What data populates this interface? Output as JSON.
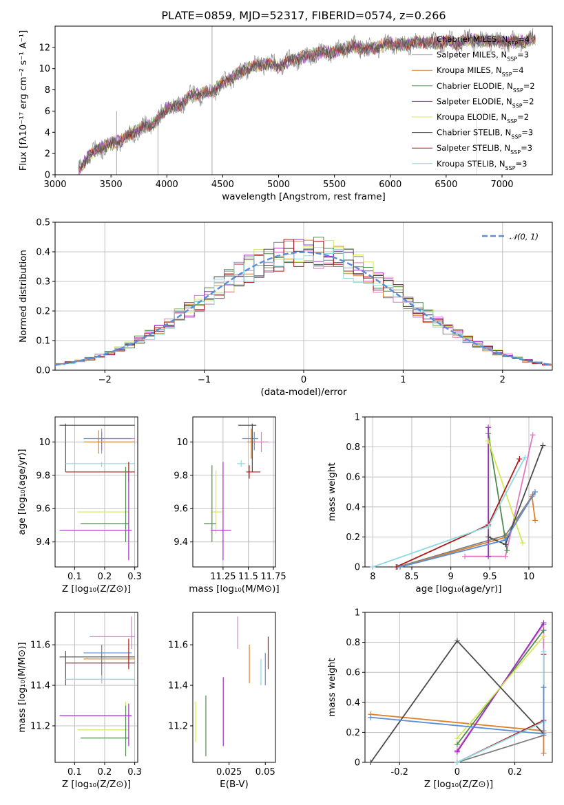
{
  "figure": {
    "title": "PLATE=0859, MJD=52317, FIBERID=0574, z=0.266"
  },
  "series_styles": [
    {
      "name": "Chabrier MILES",
      "nssp": "4",
      "color": "#808080"
    },
    {
      "name": "Salpeter MILES",
      "nssp": "3",
      "color": "#e377c2"
    },
    {
      "name": "Kroupa MILES",
      "nssp": "4",
      "color": "#d9822b"
    },
    {
      "name": "Chabrier ELODIE",
      "nssp": "2",
      "color": "#4f8a4f"
    },
    {
      "name": "Salpeter ELODIE",
      "nssp": "2",
      "color": "#9a2fbf"
    },
    {
      "name": "Kroupa ELODIE",
      "nssp": "2",
      "color": "#d4e857"
    },
    {
      "name": "Chabrier STELIB",
      "nssp": "3",
      "color": "#4a4a4a"
    },
    {
      "name": "Salpeter STELIB",
      "nssp": "3",
      "color": "#b01818"
    },
    {
      "name": "Kroupa STELIB",
      "nssp": "3",
      "color": "#8fd9e0"
    }
  ],
  "legend_extra_color": "#5b8dd9",
  "chart_data": [
    {
      "id": "spectrum",
      "type": "line",
      "xlabel": "wavelength [Angstrom, rest frame]",
      "ylabel": "Flux [fλ10⁻¹⁷ erg cm⁻² s⁻¹ A⁻¹]",
      "xlim": [
        3000,
        7450
      ],
      "ylim": [
        0,
        14
      ],
      "xticks": [
        "3000",
        "3500",
        "4000",
        "4500",
        "5000",
        "5500",
        "6000",
        "6500",
        "7000"
      ],
      "yticks": [
        "0",
        "2",
        "4",
        "6",
        "8",
        "10",
        "12"
      ],
      "grid": false,
      "legend_position": "top-right",
      "continuum": {
        "x": [
          3200,
          3300,
          3400,
          3500,
          3600,
          3700,
          3800,
          3900,
          4000,
          4100,
          4200,
          4300,
          4400,
          4500,
          4600,
          4700,
          4800,
          4900,
          5000,
          5100,
          5200,
          5300,
          5400,
          5500,
          5600,
          5700,
          5800,
          5900,
          6000,
          6100,
          6200,
          6300,
          6400,
          6500,
          6600,
          6700,
          6800,
          6900,
          7000,
          7100,
          7200,
          7300
        ],
        "y": [
          0.2,
          1.8,
          2.5,
          2.9,
          3.3,
          4.0,
          4.5,
          4.9,
          6.3,
          6.4,
          7.4,
          7.6,
          7.8,
          8.6,
          9.3,
          9.9,
          10.3,
          10.5,
          10.2,
          10.8,
          11.0,
          11.3,
          11.6,
          11.5,
          11.9,
          12.1,
          11.8,
          12.1,
          12.4,
          12.2,
          12.4,
          12.5,
          12.4,
          12.6,
          12.3,
          12.8,
          12.6,
          12.7,
          12.5,
          12.6,
          12.5,
          12.9
        ]
      }
    },
    {
      "id": "residuals",
      "type": "histogram",
      "xlabel": "(data-model)/error",
      "ylabel": "Normed distribution",
      "xlim": [
        -2.5,
        2.5
      ],
      "ylim": [
        0,
        0.5
      ],
      "xticks": [
        "−2",
        "−1",
        "0",
        "1",
        "2"
      ],
      "yticks": [
        "0.0",
        "0.1",
        "0.2",
        "0.3",
        "0.4",
        "0.5"
      ],
      "grid": true,
      "legend_position": "top-right",
      "reference_curve": {
        "label": "𝒩(0, 1)",
        "mean": 0,
        "sigma": 1
      },
      "bin_width": 0.1
    },
    {
      "id": "age_vs_Z",
      "type": "scatter",
      "xlabel": "Z [log₁₀(Z/Z⊙)]",
      "ylabel": "age  [log₁₀(age/yr)]",
      "xlim": [
        0.035,
        0.31
      ],
      "ylim": [
        9.25,
        10.15
      ],
      "xticks": [
        0.1,
        0.2,
        0.3
      ],
      "yticks": [
        9.4,
        9.6,
        9.8,
        10.0
      ],
      "grid": true,
      "points": [
        {
          "x": 0.19,
          "y": 10.02,
          "xerr": [
            0.19,
            0.3
          ],
          "yerr": [
            9.93,
            10.08
          ],
          "series": 1
        },
        {
          "x": 0.18,
          "y": 10.0,
          "xerr": [
            0.13,
            0.3
          ],
          "yerr": [
            9.93,
            10.07
          ],
          "series": 2
        },
        {
          "x": 0.19,
          "y": 10.02,
          "xerr": [
            0.13,
            0.29
          ],
          "yerr": [
            9.95,
            10.06
          ],
          "series": 9
        },
        {
          "x": 0.07,
          "y": 10.1,
          "xerr": [
            0.05,
            0.3
          ],
          "yerr": [
            9.82,
            10.11
          ],
          "series": 6
        },
        {
          "x": 0.19,
          "y": 9.87,
          "xerr": [
            0.07,
            0.3
          ],
          "yerr": [
            9.85,
            9.88
          ],
          "series": 8
        },
        {
          "x": 0.28,
          "y": 9.82,
          "xerr": [
            0.07,
            0.3
          ],
          "yerr": [
            9.76,
            9.88
          ],
          "series": 7
        },
        {
          "x": 0.27,
          "y": 9.58,
          "xerr": [
            0.11,
            0.28
          ],
          "yerr": [
            9.45,
            9.83
          ],
          "series": 5
        },
        {
          "x": 0.27,
          "y": 9.51,
          "xerr": [
            0.12,
            0.28
          ],
          "yerr": [
            9.4,
            9.85
          ],
          "series": 3
        },
        {
          "x": 0.28,
          "y": 9.47,
          "xerr": [
            0.05,
            0.29
          ],
          "yerr": [
            9.29,
            9.82
          ],
          "series": 4
        }
      ]
    },
    {
      "id": "age_vs_mass",
      "type": "scatter",
      "xlabel": "mass [log₁₀(M/M⊙)]",
      "ylabel": "",
      "xlim": [
        10.95,
        11.77
      ],
      "ylim": [
        9.25,
        10.15
      ],
      "xticks": [
        11.25,
        11.5,
        11.75
      ],
      "yticks": [
        9.4,
        9.6,
        9.8,
        10.0
      ],
      "grid": true,
      "points": [
        {
          "x": 11.63,
          "y": 10.0,
          "xerr": [
            11.55,
            11.7
          ],
          "yerr": [
            9.94,
            10.06
          ],
          "series": 1
        },
        {
          "x": 11.53,
          "y": 10.0,
          "xerr": [
            11.49,
            11.57
          ],
          "yerr": [
            9.9,
            10.08
          ],
          "series": 2
        },
        {
          "x": 11.56,
          "y": 10.02,
          "xerr": [
            11.44,
            11.6
          ],
          "yerr": [
            9.95,
            10.06
          ],
          "series": 9
        },
        {
          "x": 11.54,
          "y": 10.1,
          "xerr": [
            11.4,
            11.58
          ],
          "yerr": [
            9.82,
            10.11
          ],
          "series": 6
        },
        {
          "x": 11.43,
          "y": 9.87,
          "xerr": [
            11.39,
            11.47
          ],
          "yerr": [
            9.85,
            9.89
          ],
          "series": 8
        },
        {
          "x": 11.51,
          "y": 9.82,
          "xerr": [
            11.48,
            11.62
          ],
          "yerr": [
            9.78,
            9.86
          ],
          "series": 7
        },
        {
          "x": 11.18,
          "y": 9.58,
          "xerr": [
            11.14,
            11.24
          ],
          "yerr": [
            9.45,
            9.83
          ],
          "series": 5
        },
        {
          "x": 11.14,
          "y": 9.51,
          "xerr": [
            11.06,
            11.18
          ],
          "yerr": [
            9.4,
            9.86
          ],
          "series": 3
        },
        {
          "x": 11.25,
          "y": 9.47,
          "xerr": [
            11.13,
            11.33
          ],
          "yerr": [
            9.29,
            9.88
          ],
          "series": 4
        }
      ]
    },
    {
      "id": "weight_vs_age",
      "type": "line",
      "xlabel": "age  [log₁₀(age/yr)]",
      "ylabel": "mass weight",
      "xlim": [
        7.9,
        10.3
      ],
      "ylim": [
        0,
        1
      ],
      "xticks": [
        8.0,
        8.5,
        9.0,
        9.5,
        10.0
      ],
      "yticks": [
        0.0,
        0.2,
        0.4,
        0.6,
        0.8,
        1.0
      ],
      "grid": true,
      "series_points": [
        {
          "series": 0,
          "x": [
            8.32,
            9.7,
            10.05
          ],
          "y": [
            0.0,
            0.21,
            0.48
          ]
        },
        {
          "series": 1,
          "x": [
            9.18,
            9.7,
            10.05
          ],
          "y": [
            0.07,
            0.07,
            0.88
          ]
        },
        {
          "series": 2,
          "x": [
            8.35,
            9.72,
            10.04,
            10.08
          ],
          "y": [
            0.0,
            0.2,
            0.47,
            0.31
          ]
        },
        {
          "series": 3,
          "x": [
            9.48,
            9.72
          ],
          "y": [
            0.89,
            0.11
          ]
        },
        {
          "series": 4,
          "x": [
            9.48,
            9.48
          ],
          "y": [
            0.93,
            0.07
          ]
        },
        {
          "series": 5,
          "x": [
            9.48,
            9.92
          ],
          "y": [
            0.84,
            0.16
          ]
        },
        {
          "series": 6,
          "x": [
            9.48,
            9.7,
            10.18
          ],
          "y": [
            0.2,
            0.15,
            0.81
          ]
        },
        {
          "series": 7,
          "x": [
            8.3,
            9.48,
            9.88
          ],
          "y": [
            0.0,
            0.28,
            0.72
          ]
        },
        {
          "series": 8,
          "x": [
            8.0,
            9.48,
            9.95
          ],
          "y": [
            0.0,
            0.27,
            0.73
          ]
        },
        {
          "series": 9,
          "x": [
            8.35,
            9.7,
            10.08
          ],
          "y": [
            0.0,
            0.18,
            0.5
          ]
        }
      ]
    },
    {
      "id": "mass_vs_Z",
      "type": "scatter",
      "xlabel": "Z [log₁₀(Z/Z⊙)]",
      "ylabel": "mass [log₁₀(M/M⊙)]",
      "xlim": [
        0.035,
        0.31
      ],
      "ylim": [
        11.02,
        11.76
      ],
      "xticks": [
        0.1,
        0.2,
        0.3
      ],
      "yticks": [
        11.2,
        11.4,
        11.6
      ],
      "grid": true,
      "points": [
        {
          "x": 0.29,
          "y": 11.64,
          "xerr": [
            0.15,
            0.3
          ],
          "yerr": [
            11.58,
            11.74
          ],
          "series": 1
        },
        {
          "x": 0.19,
          "y": 11.53,
          "xerr": [
            0.13,
            0.3
          ],
          "yerr": [
            11.42,
            11.6
          ],
          "series": 2
        },
        {
          "x": 0.19,
          "y": 11.56,
          "xerr": [
            0.13,
            0.29
          ],
          "yerr": [
            11.41,
            11.6
          ],
          "series": 9
        },
        {
          "x": 0.07,
          "y": 11.54,
          "xerr": [
            0.05,
            0.3
          ],
          "yerr": [
            11.4,
            11.57
          ],
          "series": 6
        },
        {
          "x": 0.19,
          "y": 11.43,
          "xerr": [
            0.07,
            0.3
          ],
          "yerr": [
            11.41,
            11.45
          ],
          "series": 8
        },
        {
          "x": 0.28,
          "y": 11.51,
          "xerr": [
            0.07,
            0.3
          ],
          "yerr": [
            11.48,
            11.63
          ],
          "series": 7
        },
        {
          "x": 0.27,
          "y": 11.18,
          "xerr": [
            0.11,
            0.28
          ],
          "yerr": [
            11.12,
            11.32
          ],
          "series": 5
        },
        {
          "x": 0.27,
          "y": 11.14,
          "xerr": [
            0.12,
            0.28
          ],
          "yerr": [
            11.05,
            11.3
          ],
          "series": 3
        },
        {
          "x": 0.28,
          "y": 11.25,
          "xerr": [
            0.05,
            0.29
          ],
          "yerr": [
            11.1,
            11.31
          ],
          "series": 4
        }
      ]
    },
    {
      "id": "mass_vs_ebv",
      "type": "scatter",
      "xlabel": "E(B-V)",
      "ylabel": "",
      "xlim": [
        0.0,
        0.057
      ],
      "ylim": [
        11.02,
        11.76
      ],
      "xticks": [
        0.025,
        0.05
      ],
      "yticks": [
        11.2,
        11.4,
        11.6
      ],
      "grid": false,
      "points": [
        {
          "x": 0.031,
          "y": 11.64,
          "yerr": [
            11.58,
            11.74
          ],
          "series": 1
        },
        {
          "x": 0.039,
          "y": 11.53,
          "yerr": [
            11.41,
            11.6
          ],
          "series": 2
        },
        {
          "x": 0.052,
          "y": 11.56,
          "yerr": [
            11.48,
            11.64
          ],
          "series": 7
        },
        {
          "x": 0.047,
          "y": 11.43,
          "yerr": [
            11.4,
            11.53
          ],
          "series": 8
        },
        {
          "x": 0.05,
          "y": 11.48,
          "yerr": [
            11.4,
            11.56
          ],
          "series": 9
        },
        {
          "x": 0.002,
          "y": 11.22,
          "yerr": [
            11.12,
            11.32
          ],
          "series": 5
        },
        {
          "x": 0.009,
          "y": 11.2,
          "yerr": [
            11.05,
            11.35
          ],
          "series": 3
        },
        {
          "x": 0.021,
          "y": 11.27,
          "yerr": [
            11.1,
            11.44
          ],
          "series": 4
        }
      ]
    },
    {
      "id": "weight_vs_Z",
      "type": "line",
      "xlabel": "Z [log₁₀(Z/Z⊙)]",
      "ylabel": "mass weight",
      "xlim": [
        -0.32,
        0.33
      ],
      "ylim": [
        0,
        1
      ],
      "xticks": [
        -0.2,
        0.0,
        0.2
      ],
      "yticks": [
        0.0,
        0.2,
        0.4,
        0.6,
        0.8,
        1.0
      ],
      "grid": true,
      "series_points": [
        {
          "series": 0,
          "x": [
            0.0,
            0.3,
            0.3
          ],
          "y": [
            0.0,
            0.18,
            0.5
          ]
        },
        {
          "series": 1,
          "x": [
            0.0,
            0.3,
            0.3
          ],
          "y": [
            0.08,
            0.92,
            0.06
          ]
        },
        {
          "series": 2,
          "x": [
            -0.3,
            0.3,
            0.3
          ],
          "y": [
            0.32,
            0.21,
            0.06
          ]
        },
        {
          "series": 3,
          "x": [
            0.0,
            0.3
          ],
          "y": [
            0.12,
            0.88
          ]
        },
        {
          "series": 4,
          "x": [
            0.0,
            0.3
          ],
          "y": [
            0.07,
            0.93
          ]
        },
        {
          "series": 5,
          "x": [
            0.0,
            0.3
          ],
          "y": [
            0.16,
            0.84
          ]
        },
        {
          "series": 6,
          "x": [
            -0.3,
            0.0,
            0.3,
            0.3
          ],
          "y": [
            0.0,
            0.81,
            0.19,
            0.72
          ]
        },
        {
          "series": 7,
          "x": [
            0.0,
            0.3,
            0.3
          ],
          "y": [
            0.0,
            0.28,
            0.72
          ]
        },
        {
          "series": 8,
          "x": [
            0.0,
            0.3,
            0.3
          ],
          "y": [
            0.0,
            0.27,
            0.74
          ]
        },
        {
          "series": 9,
          "x": [
            -0.3,
            0.3,
            0.3
          ],
          "y": [
            0.3,
            0.19,
            0.5
          ]
        }
      ]
    }
  ]
}
